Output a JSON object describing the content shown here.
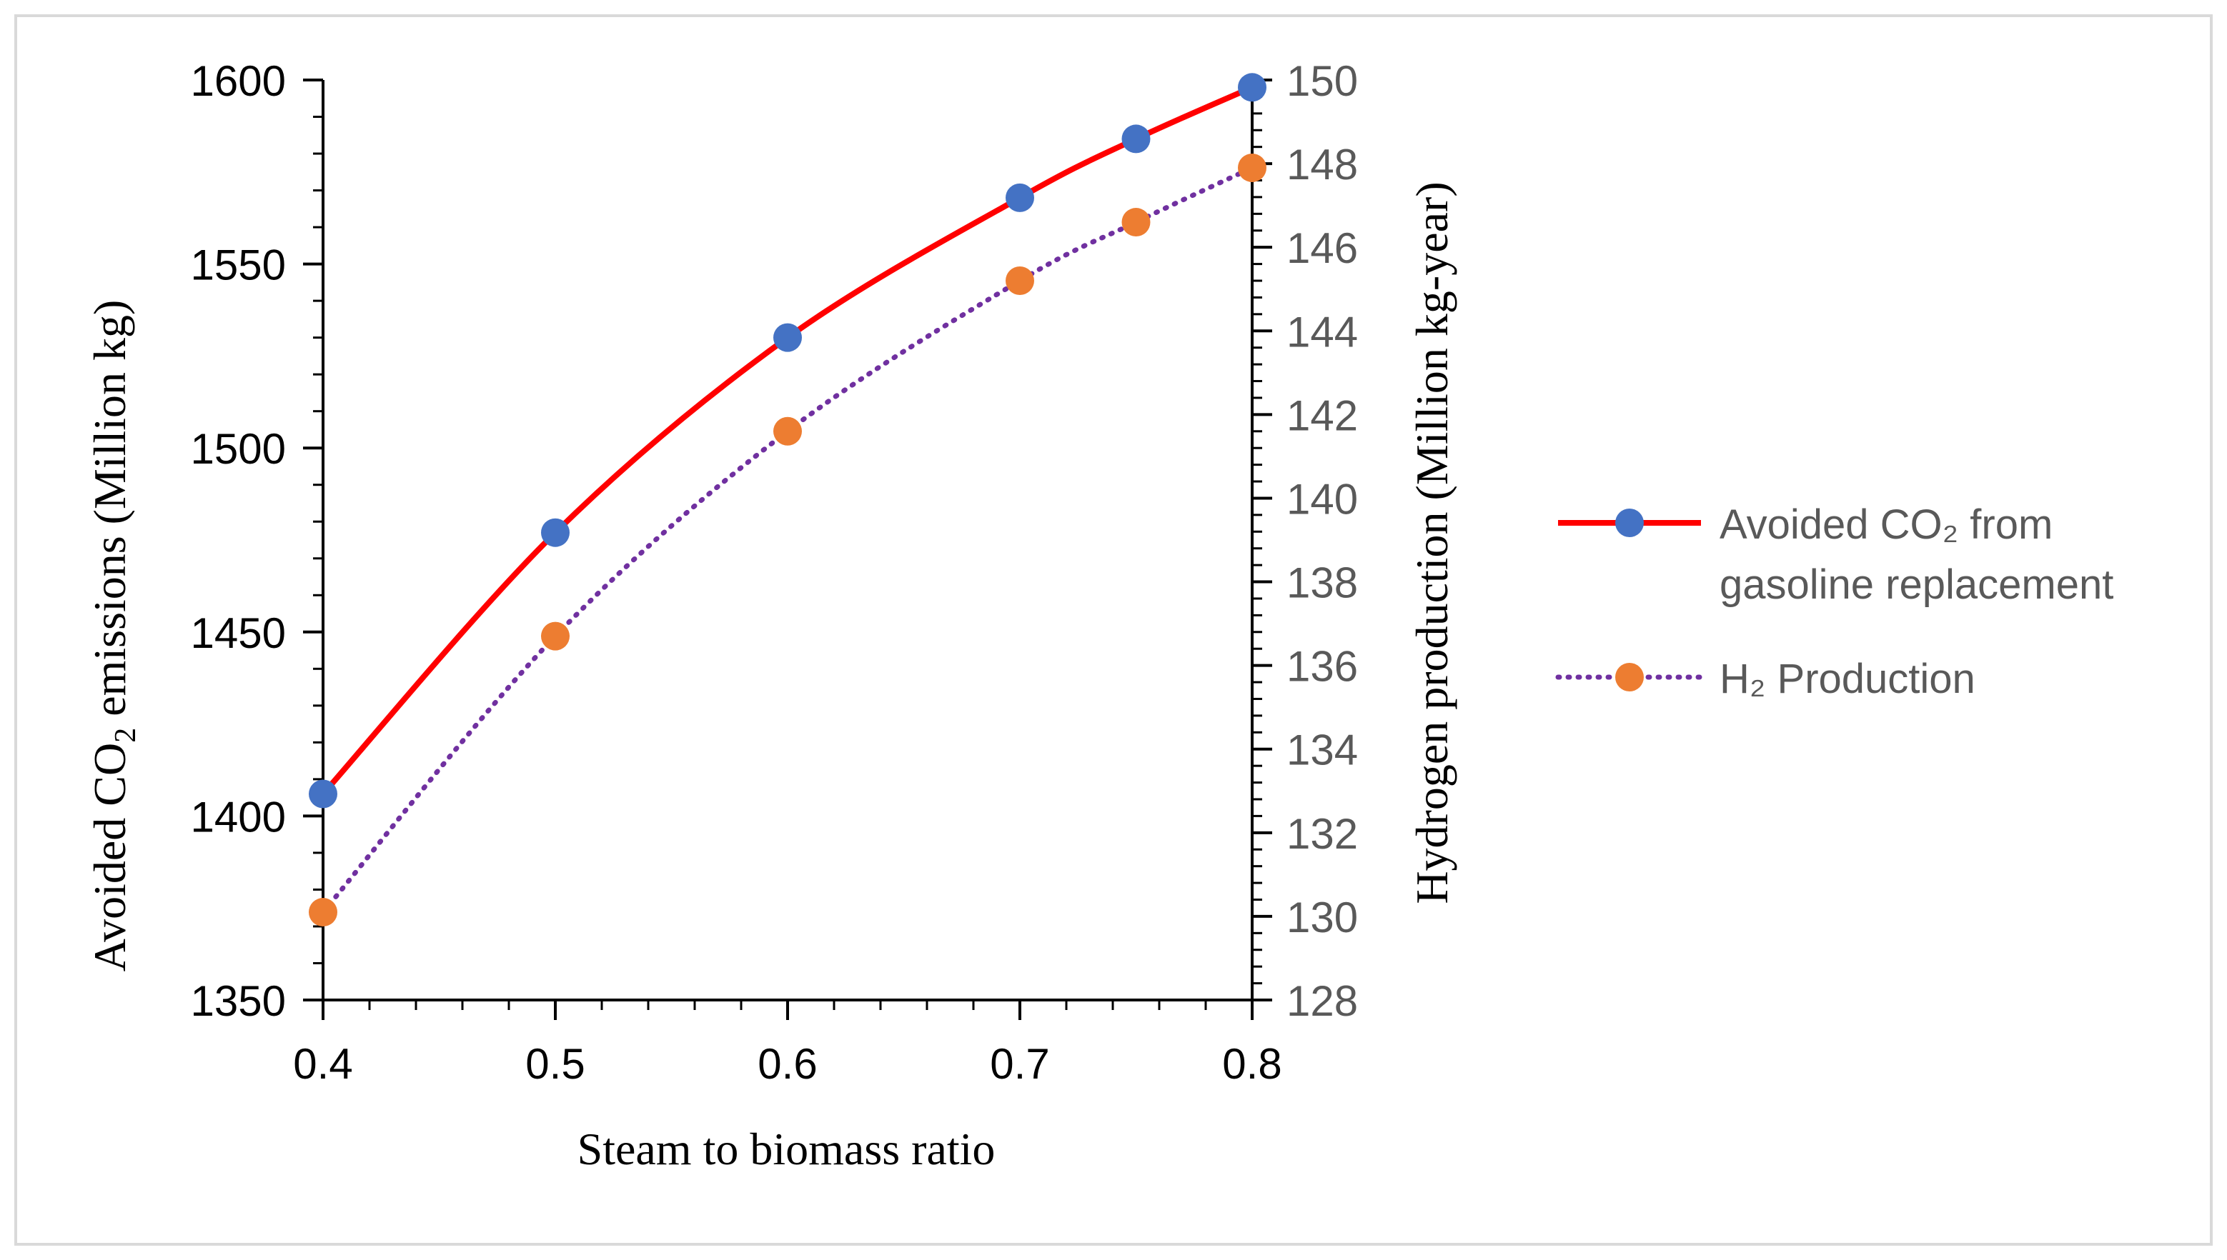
{
  "chart_data": {
    "type": "line",
    "x": [
      0.4,
      0.5,
      0.6,
      0.7,
      0.75,
      0.8
    ],
    "xlabel": "Steam to biomass ratio",
    "xlim": [
      0.4,
      0.8
    ],
    "xticks": [
      "0.4",
      "0.5",
      "0.6",
      "0.7",
      "0.8"
    ],
    "ylabel_left": {
      "pre": "Avoided CO",
      "sub": "2",
      "post": " emissions (Million kg)"
    },
    "ylim_left": [
      1350,
      1600
    ],
    "yticks_left": [
      "1350",
      "1400",
      "1450",
      "1500",
      "1550",
      "1600"
    ],
    "ylabel_right": "Hydrogen production (Million kg-year)",
    "ylim_right": [
      128,
      150
    ],
    "yticks_right": [
      "128",
      "130",
      "132",
      "134",
      "136",
      "138",
      "140",
      "142",
      "144",
      "146",
      "148",
      "150"
    ],
    "series": [
      {
        "name": "Avoided CO₂ from gasoline replacement",
        "legend_lines": [
          "Avoided CO₂ from",
          "gasoline replacement"
        ],
        "axis": "left",
        "values": [
          1406,
          1477,
          1530,
          1568,
          1584,
          1598
        ],
        "line_color": "#ff0000",
        "marker_color": "#4472c4",
        "style": "solid"
      },
      {
        "name": "H₂ Production",
        "legend_lines": [
          "H₂ Production"
        ],
        "axis": "right",
        "values": [
          130.1,
          136.7,
          141.6,
          145.2,
          146.6,
          147.9
        ],
        "line_color": "#7030a0",
        "marker_color": "#ed7d31",
        "style": "dotted"
      }
    ]
  }
}
